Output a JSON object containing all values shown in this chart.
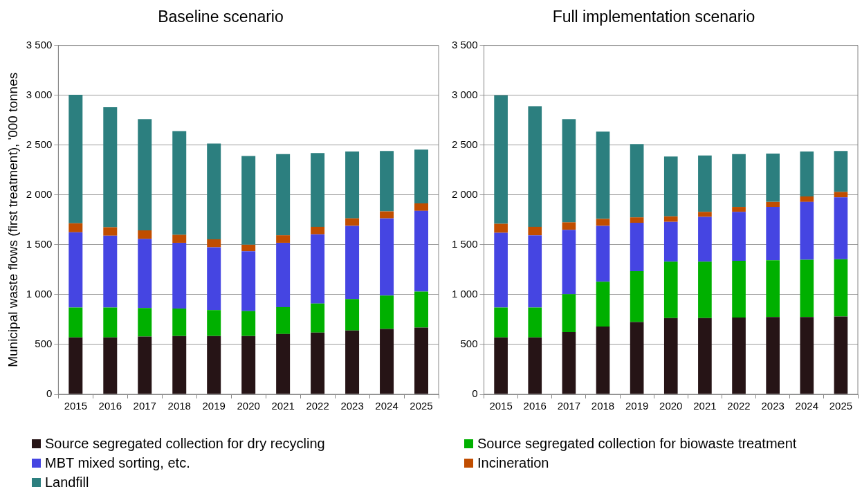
{
  "chart_data": [
    {
      "type": "bar",
      "title": "Baseline scenario",
      "ylabel": "Municipal waste flows (first treatment), '000 tonnes",
      "categories": [
        "2015",
        "2016",
        "2017",
        "2018",
        "2019",
        "2020",
        "2021",
        "2022",
        "2023",
        "2024",
        "2025"
      ],
      "stacked": true,
      "ylim": [
        0,
        3500
      ],
      "yticks": [
        {
          "value": 0,
          "label": "0"
        },
        {
          "value": 500,
          "label": "500"
        },
        {
          "value": 1000,
          "label": "1 000"
        },
        {
          "value": 1500,
          "label": "1 500"
        },
        {
          "value": 2000,
          "label": "2 000"
        },
        {
          "value": 2500,
          "label": "2 500"
        },
        {
          "value": 3000,
          "label": "3 000"
        },
        {
          "value": 3500,
          "label": "3 500"
        }
      ],
      "grid": "y",
      "legend": "bottom",
      "series": [
        {
          "name": "Source segregated collection for dry recycling",
          "color": "#261416",
          "values": [
            570,
            570,
            580,
            585,
            585,
            585,
            605,
            620,
            640,
            655,
            670
          ]
        },
        {
          "name": "Source segregated collection for biowaste treatment",
          "color": "#00b000",
          "values": [
            300,
            300,
            285,
            275,
            260,
            250,
            270,
            290,
            315,
            335,
            360
          ]
        },
        {
          "name": "MBT mixed sorting, etc.",
          "color": "#4545e2",
          "values": [
            755,
            720,
            695,
            660,
            630,
            600,
            645,
            695,
            735,
            775,
            810
          ]
        },
        {
          "name": "Incineration",
          "color": "#c04d00",
          "values": [
            90,
            85,
            85,
            80,
            80,
            65,
            75,
            75,
            75,
            70,
            75
          ]
        },
        {
          "name": "Landfill",
          "color": "#2c7f7f",
          "values": [
            1290,
            1205,
            1115,
            1040,
            960,
            890,
            815,
            740,
            670,
            605,
            540
          ]
        }
      ]
    },
    {
      "type": "bar",
      "title": "Full implementation scenario",
      "categories": [
        "2015",
        "2016",
        "2017",
        "2018",
        "2019",
        "2020",
        "2021",
        "2022",
        "2023",
        "2024",
        "2025"
      ],
      "stacked": true,
      "ylim": [
        0,
        3500
      ],
      "yticks": [
        {
          "value": 0,
          "label": "0"
        },
        {
          "value": 500,
          "label": "500"
        },
        {
          "value": 1000,
          "label": "1 000"
        },
        {
          "value": 1500,
          "label": "1 500"
        },
        {
          "value": 2000,
          "label": "2 000"
        },
        {
          "value": 2500,
          "label": "2 500"
        },
        {
          "value": 3000,
          "label": "3 000"
        },
        {
          "value": 3500,
          "label": "3 500"
        }
      ],
      "grid": "y",
      "series": [
        {
          "color": "#261416",
          "values": [
            570,
            570,
            625,
            680,
            725,
            765,
            765,
            770,
            775,
            775,
            780
          ]
        },
        {
          "color": "#00b000",
          "values": [
            300,
            300,
            380,
            450,
            510,
            565,
            565,
            570,
            570,
            575,
            575
          ]
        },
        {
          "color": "#4545e2",
          "values": [
            750,
            725,
            645,
            560,
            485,
            400,
            450,
            490,
            535,
            580,
            620
          ]
        },
        {
          "color": "#c04d00",
          "values": [
            90,
            85,
            75,
            70,
            55,
            55,
            50,
            50,
            50,
            55,
            55
          ]
        },
        {
          "color": "#2c7f7f",
          "values": [
            1290,
            1210,
            1035,
            875,
            735,
            600,
            565,
            530,
            485,
            450,
            410
          ]
        }
      ]
    }
  ]
}
